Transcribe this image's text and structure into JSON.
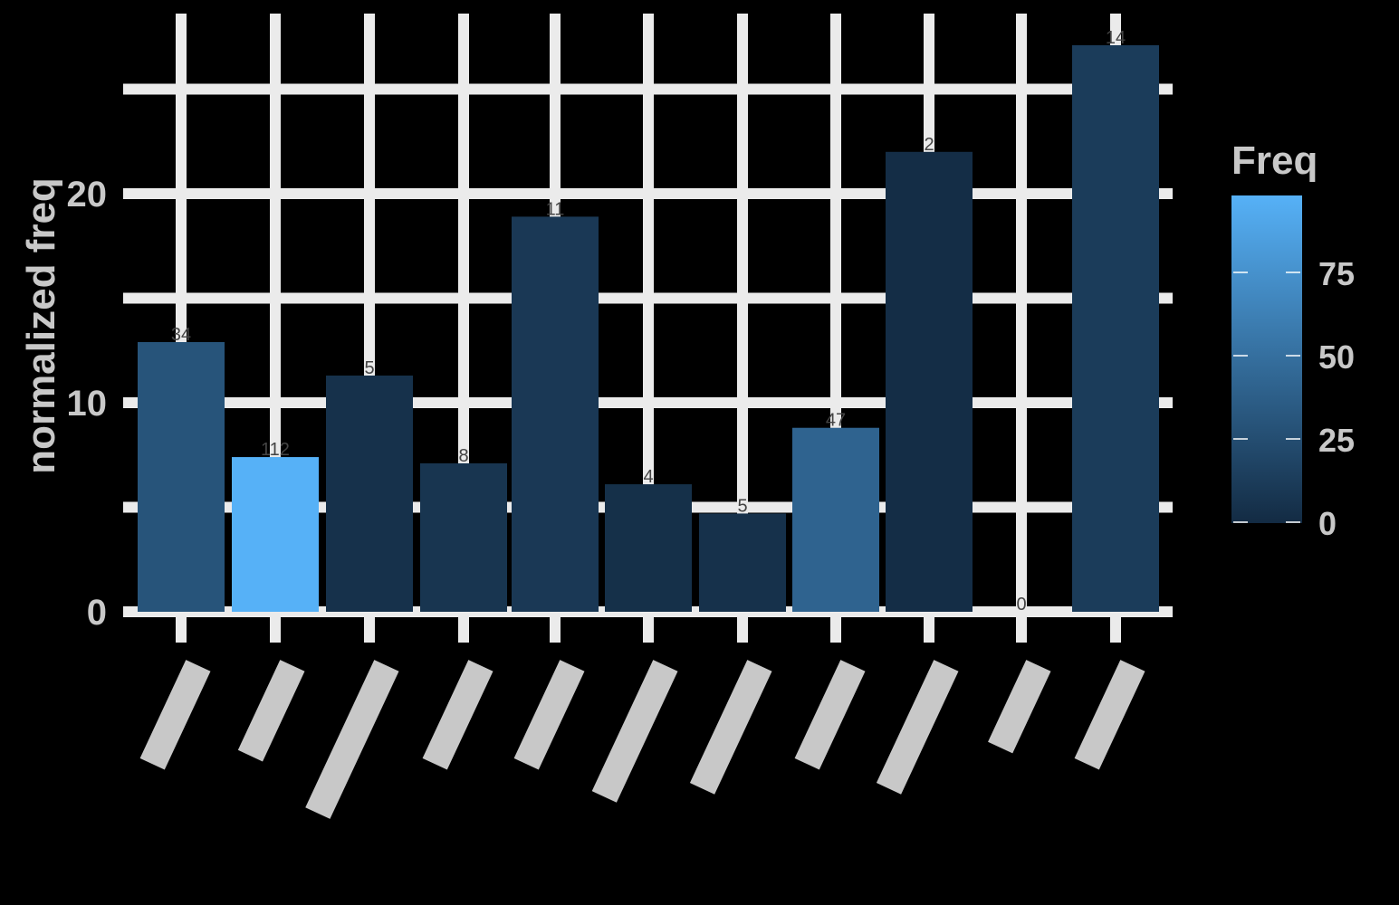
{
  "chart_data": {
    "type": "bar",
    "title": "",
    "xlabel": "",
    "ylabel": "normalized freq",
    "ylim": [
      0,
      28
    ],
    "y_ticks": [
      0,
      10,
      20
    ],
    "grid": true,
    "categories": [
      "",
      "",
      "",
      "",
      "",
      "",
      "",
      "",
      "",
      "",
      ""
    ],
    "values": [
      12.9,
      7.4,
      11.3,
      7.1,
      18.9,
      6.1,
      4.7,
      8.8,
      22.0,
      0,
      27.1
    ],
    "bar_labels": [
      "34",
      "112",
      "5",
      "8",
      "11",
      "4",
      "5",
      "47",
      "2",
      "0",
      "14"
    ],
    "fill_values": [
      34,
      112,
      5,
      8,
      11,
      4,
      5,
      47,
      2,
      0,
      14
    ],
    "legend": {
      "title": "Freq",
      "type": "colorbar",
      "ticks": [
        0,
        25,
        50,
        75
      ],
      "position": "right",
      "color_low": "#132b43",
      "color_high": "#56b1f7"
    }
  },
  "colors": {
    "background": "#000000",
    "grid": "#ebebeb",
    "text": "#c8c8c8",
    "label": "#444444"
  }
}
